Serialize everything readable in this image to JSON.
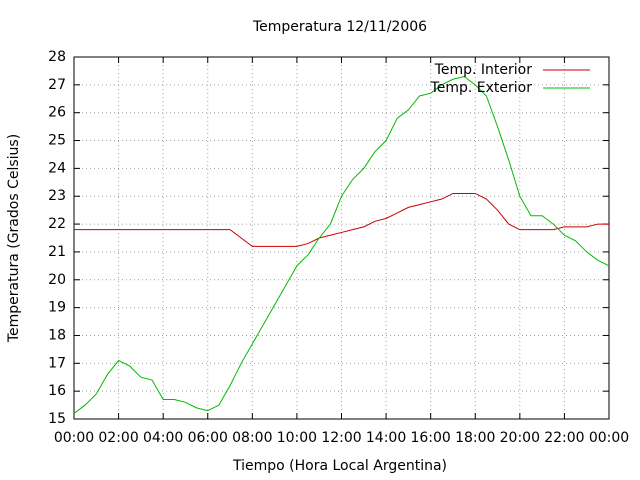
{
  "chart_data": {
    "type": "line",
    "title": "Temperatura 12/11/2006",
    "x_label": "Tiempo (Hora Local Argentina)",
    "y_label": "Temperatura (Grados Celsius)",
    "x": [
      0,
      0.5,
      1,
      1.5,
      2,
      2.5,
      3,
      3.5,
      4,
      4.5,
      5,
      5.5,
      6,
      6.5,
      7,
      7.5,
      8,
      8.5,
      9,
      9.5,
      10,
      10.5,
      11,
      11.5,
      12,
      12.5,
      13,
      13.5,
      14,
      14.5,
      15,
      15.5,
      16,
      16.5,
      17,
      17.5,
      18,
      18.5,
      19,
      19.5,
      20,
      20.5,
      21,
      21.5,
      22,
      22.5,
      23,
      23.5,
      24
    ],
    "series": [
      {
        "name": "Temp. Interior",
        "color": "#cc0000",
        "values": [
          21.8,
          21.8,
          21.8,
          21.8,
          21.8,
          21.8,
          21.8,
          21.8,
          21.8,
          21.8,
          21.8,
          21.8,
          21.8,
          21.8,
          21.8,
          21.5,
          21.2,
          21.2,
          21.2,
          21.2,
          21.2,
          21.3,
          21.5,
          21.6,
          21.7,
          21.8,
          21.9,
          22.1,
          22.2,
          22.4,
          22.6,
          22.7,
          22.8,
          22.9,
          23.1,
          23.1,
          23.1,
          22.9,
          22.5,
          22.0,
          21.8,
          21.8,
          21.8,
          21.8,
          21.9,
          21.9,
          21.9,
          22.0,
          22.0
        ]
      },
      {
        "name": "Temp. Exterior",
        "color": "#00bb00",
        "values": [
          15.2,
          15.5,
          15.9,
          16.6,
          17.1,
          16.9,
          16.5,
          16.4,
          15.7,
          15.7,
          15.6,
          15.4,
          15.3,
          15.5,
          16.2,
          17.0,
          17.7,
          18.4,
          19.1,
          19.8,
          20.5,
          20.9,
          21.5,
          22.0,
          23.0,
          23.6,
          24.0,
          24.6,
          25.0,
          25.8,
          26.1,
          26.6,
          26.7,
          27.0,
          27.2,
          27.3,
          27.0,
          26.6,
          25.5,
          24.3,
          23.0,
          22.3,
          22.3,
          22.0,
          21.6,
          21.4,
          21.0,
          20.7,
          20.5
        ]
      }
    ],
    "xlim": [
      0,
      24
    ],
    "xticks": [
      {
        "value": 0,
        "label": "00:00"
      },
      {
        "value": 2,
        "label": "02:00"
      },
      {
        "value": 4,
        "label": "04:00"
      },
      {
        "value": 6,
        "label": "06:00"
      },
      {
        "value": 8,
        "label": "08:00"
      },
      {
        "value": 10,
        "label": "10:00"
      },
      {
        "value": 12,
        "label": "12:00"
      },
      {
        "value": 14,
        "label": "14:00"
      },
      {
        "value": 16,
        "label": "16:00"
      },
      {
        "value": 18,
        "label": "18:00"
      },
      {
        "value": 20,
        "label": "20:00"
      },
      {
        "value": 22,
        "label": "22:00"
      },
      {
        "value": 24,
        "label": "00:00"
      }
    ],
    "ylim": [
      15,
      28
    ],
    "yticks": [
      15,
      16,
      17,
      18,
      19,
      20,
      21,
      22,
      23,
      24,
      25,
      26,
      27,
      28
    ],
    "grid": true,
    "legend": "top-right"
  }
}
